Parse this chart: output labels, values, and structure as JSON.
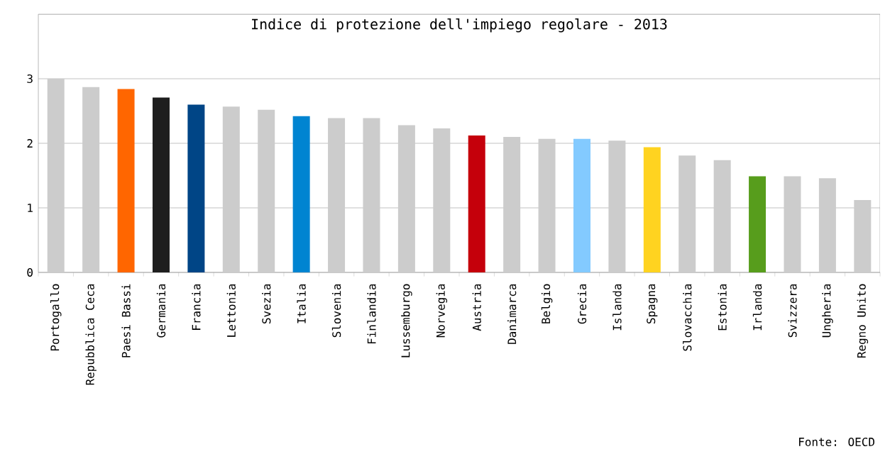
{
  "chart_data": {
    "type": "bar",
    "title": "Indice di protezione dell'impiego regolare - 2013",
    "categories": [
      "Portogallo",
      "Repubblica Ceca",
      "Paesi Bassi",
      "Germania",
      "Francia",
      "Lettonia",
      "Svezia",
      "Italia",
      "Slovenia",
      "Finlandia",
      "Lussemburgo",
      "Norvegia",
      "Austria",
      "Danimarca",
      "Belgio",
      "Grecia",
      "Islanda",
      "Spagna",
      "Slovacchia",
      "Estonia",
      "Irlanda",
      "Svizzera",
      "Ungheria",
      "Regno Unito"
    ],
    "values": [
      3.0,
      2.87,
      2.84,
      2.71,
      2.6,
      2.57,
      2.52,
      2.42,
      2.39,
      2.39,
      2.28,
      2.23,
      2.12,
      2.1,
      2.07,
      2.07,
      2.04,
      1.94,
      1.81,
      1.74,
      1.49,
      1.49,
      1.46,
      1.12
    ],
    "colors": [
      "#cccccc",
      "#cccccc",
      "#ff6600",
      "#1e1e1e",
      "#004586",
      "#cccccc",
      "#cccccc",
      "#0084d1",
      "#cccccc",
      "#cccccc",
      "#cccccc",
      "#cccccc",
      "#c5000b",
      "#cccccc",
      "#cccccc",
      "#83caff",
      "#cccccc",
      "#ffd320",
      "#cccccc",
      "#cccccc",
      "#579d1c",
      "#cccccc",
      "#cccccc",
      "#cccccc"
    ],
    "ylim": [
      0,
      4
    ],
    "yticks": [
      0,
      1,
      2,
      3,
      {
        "value": 4,
        "label": null
      }
    ],
    "grid": "y",
    "annotations": [
      "Fonte: OECD"
    ]
  }
}
